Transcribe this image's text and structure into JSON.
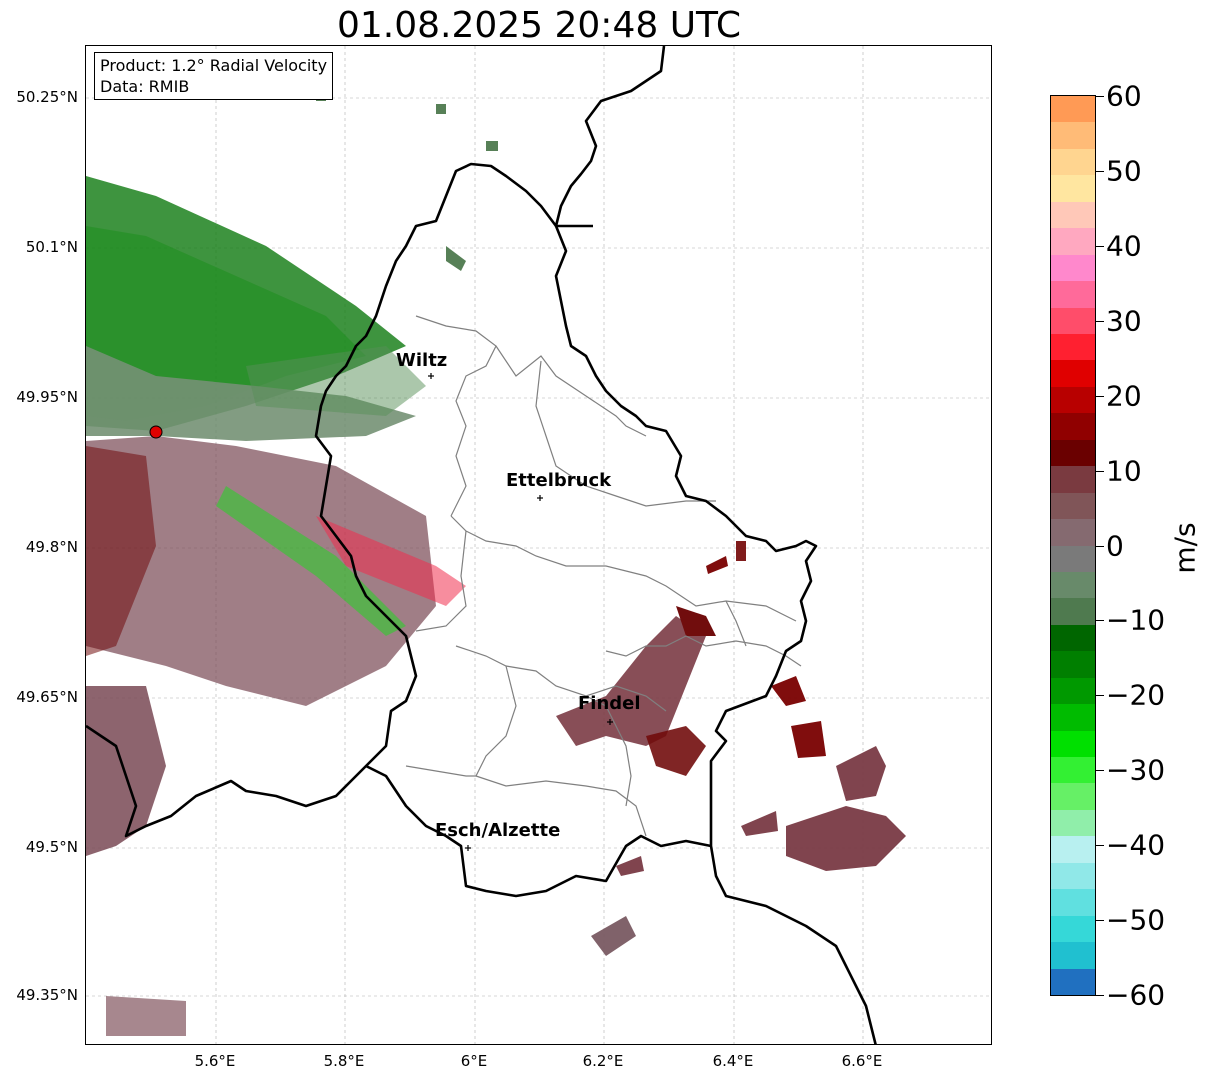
{
  "title": "01.08.2025 20:48 UTC",
  "info_box": {
    "product": "Product: 1.2° Radial Velocity",
    "source": "Data: RMIB"
  },
  "lat_ticks": [
    "50.25°N",
    "50.1°N",
    "49.95°N",
    "49.8°N",
    "49.65°N",
    "49.5°N",
    "49.35°N"
  ],
  "lon_ticks": [
    "5.6°E",
    "5.8°E",
    "6°E",
    "6.2°E",
    "6.4°E",
    "6.6°E"
  ],
  "cities": [
    {
      "name": "Wiltz"
    },
    {
      "name": "Ettelbruck"
    },
    {
      "name": "Findel"
    },
    {
      "name": "Esch/Alzette"
    }
  ],
  "colorbar": {
    "unit": "m/s",
    "ticks": [
      "60",
      "50",
      "40",
      "30",
      "20",
      "10",
      "0",
      "−10",
      "−20",
      "−30",
      "−40",
      "−50",
      "−60"
    ],
    "range": [
      -60,
      60
    ],
    "colors_top_to_bottom": [
      "#ff9a55",
      "#ffbb77",
      "#ffd590",
      "#ffe6a0",
      "#ffc8b8",
      "#ffa8c0",
      "#ff88cc",
      "#ff6a9a",
      "#ff4d6a",
      "#ff2030",
      "#e00000",
      "#b80000",
      "#900000",
      "#6a0000",
      "#7a3a40",
      "#805558",
      "#856a70",
      "#7a7a7a",
      "#688a6a",
      "#4f7a4f",
      "#006600",
      "#007f00",
      "#009900",
      "#00bb00",
      "#00e000",
      "#33f033",
      "#66f066",
      "#90eeaa",
      "#b8f0f0",
      "#90e8e8",
      "#60e0e0",
      "#35d8d8",
      "#20c0d0",
      "#2070c0"
    ]
  },
  "colors": {
    "radar_site": "#e00000",
    "border_national": "#000000",
    "border_canton": "#808080",
    "grid": "#b0b0b0"
  }
}
